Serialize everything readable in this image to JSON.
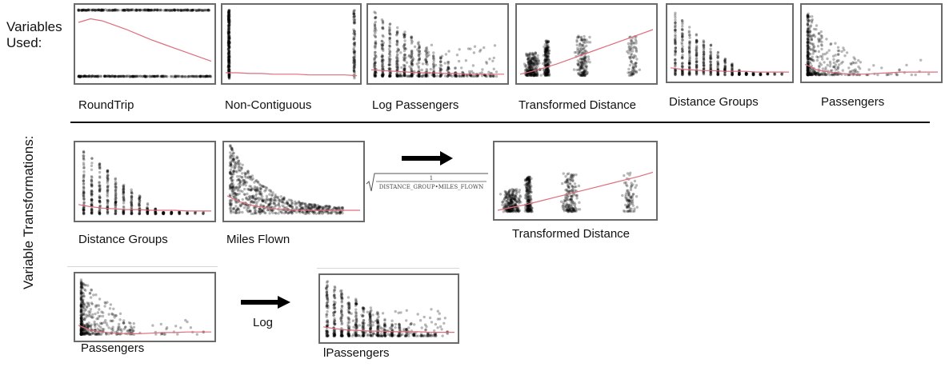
{
  "headings": {
    "variables_used": "Variables Used:",
    "variable_transformations": "Variable Transformations:"
  },
  "top_labels": [
    "RoundTrip",
    "Non-Contiguous",
    "Log Passengers",
    "Transformed Distance",
    "Distance Groups",
    "Passengers"
  ],
  "transform_labels": {
    "distance_groups": "Distance Groups",
    "miles_flown": "Miles Flown",
    "transformed_distance": "Transformed Distance",
    "passengers": "Passengers",
    "lpassengers": "lPassengers",
    "log_arrow": "Log"
  },
  "formula": {
    "numerator": "1",
    "denominator": "DISTANCE_GROUP•MILES_FLOWN"
  },
  "colors": {
    "points": "#000000",
    "trend": "#e06c7c",
    "frame": "#6a6a6a"
  },
  "chart_data": [
    {
      "type": "scatter",
      "title": "RoundTrip",
      "pattern": "binary",
      "trend": [
        0.8,
        0.85,
        0.82,
        0.76,
        0.7,
        0.63,
        0.56,
        0.5,
        0.44,
        0.38,
        0.32,
        0.26
      ]
    },
    {
      "type": "scatter",
      "title": "Non-Contiguous",
      "pattern": "two-bars",
      "trend": [
        0.1,
        0.1,
        0.09,
        0.09,
        0.08,
        0.08,
        0.08,
        0.07,
        0.07,
        0.07,
        0.07,
        0.06
      ]
    },
    {
      "type": "scatter",
      "title": "Log Passengers",
      "pattern": "log-columns",
      "trend": [
        0.14,
        0.13,
        0.12,
        0.11,
        0.1,
        0.1,
        0.09,
        0.09,
        0.08,
        0.08,
        0.08,
        0.08
      ]
    },
    {
      "type": "scatter",
      "title": "Transformed Distance",
      "pattern": "clusters",
      "trend": [
        0.08,
        0.12,
        0.17,
        0.22,
        0.28,
        0.34,
        0.4,
        0.46,
        0.52,
        0.58,
        0.64,
        0.7
      ]
    },
    {
      "type": "scatter",
      "title": "Distance Groups",
      "pattern": "decay-columns",
      "trend": [
        0.15,
        0.13,
        0.12,
        0.11,
        0.11,
        0.1,
        0.1,
        0.1,
        0.09,
        0.09,
        0.09,
        0.09
      ]
    },
    {
      "type": "scatter",
      "title": "Passengers",
      "pattern": "spike-left",
      "trend": [
        0.2,
        0.12,
        0.09,
        0.07,
        0.06,
        0.06,
        0.07,
        0.08,
        0.09,
        0.09,
        0.09,
        0.09
      ]
    },
    {
      "type": "scatter",
      "title": "Distance Groups",
      "pattern": "decay-columns",
      "trend": [
        0.18,
        0.15,
        0.13,
        0.12,
        0.11,
        0.11,
        0.1,
        0.1,
        0.1,
        0.09,
        0.09,
        0.09
      ]
    },
    {
      "type": "scatter",
      "title": "Miles Flown",
      "pattern": "decay-curve",
      "trend": [
        0.3,
        0.22,
        0.17,
        0.14,
        0.12,
        0.11,
        0.1,
        0.1,
        0.1,
        0.1,
        0.1,
        0.1
      ]
    },
    {
      "type": "scatter",
      "title": "Transformed Distance",
      "pattern": "clusters",
      "trend": [
        0.08,
        0.12,
        0.16,
        0.21,
        0.26,
        0.31,
        0.36,
        0.41,
        0.46,
        0.51,
        0.56,
        0.62
      ]
    },
    {
      "type": "scatter",
      "title": "Passengers",
      "pattern": "spike-left",
      "trend": [
        0.2,
        0.12,
        0.09,
        0.07,
        0.06,
        0.06,
        0.07,
        0.08,
        0.08,
        0.09,
        0.09,
        0.09
      ]
    },
    {
      "type": "scatter",
      "title": "lPassengers",
      "pattern": "log-columns",
      "trend": [
        0.2,
        0.17,
        0.15,
        0.14,
        0.13,
        0.13,
        0.12,
        0.12,
        0.12,
        0.11,
        0.11,
        0.11
      ]
    }
  ]
}
